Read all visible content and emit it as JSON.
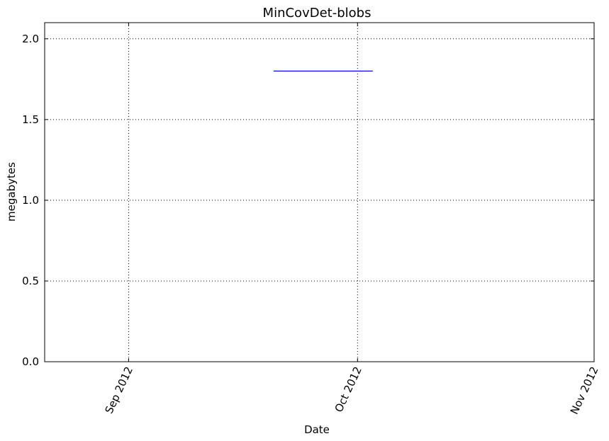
{
  "chart_data": {
    "type": "line",
    "title": "MinCovDet-blobs",
    "xlabel": "Date",
    "ylabel": "megabytes",
    "x_axis_type": "date",
    "xlim": [
      "2012-08-21",
      "2012-11-01"
    ],
    "ylim": [
      0,
      2.1
    ],
    "x_ticks": [
      {
        "value": "2012-09-01",
        "label": "Sep 2012"
      },
      {
        "value": "2012-10-01",
        "label": "Oct 2012"
      },
      {
        "value": "2012-11-01",
        "label": "Nov 2012"
      }
    ],
    "y_ticks": [
      {
        "value": 0.0,
        "label": "0.0"
      },
      {
        "value": 0.5,
        "label": "0.5"
      },
      {
        "value": 1.0,
        "label": "1.0"
      },
      {
        "value": 1.5,
        "label": "1.5"
      },
      {
        "value": 2.0,
        "label": "2.0"
      }
    ],
    "grid": true,
    "series": [
      {
        "color": "#0000ff",
        "points": [
          {
            "x": "2012-09-20",
            "y": 1.8
          },
          {
            "x": "2012-10-03",
            "y": 1.8
          }
        ]
      }
    ]
  }
}
